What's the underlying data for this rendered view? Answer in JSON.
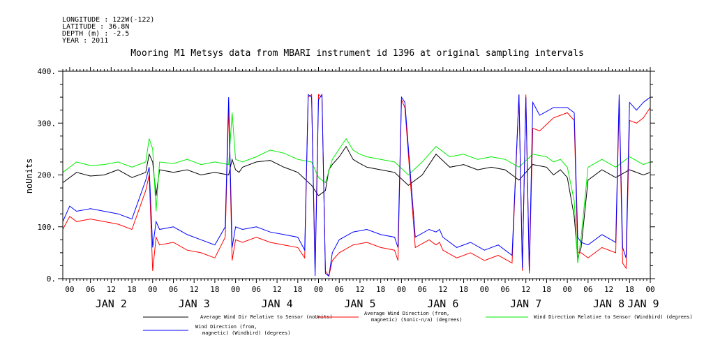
{
  "header": {
    "longitude": "LONGITUDE : 122W(-122)",
    "latitude": "LATITUDE : 36.8N",
    "depth": "DEPTH (m) : -2.5",
    "year": "YEAR : 2011"
  },
  "chart_data": {
    "type": "line",
    "title": "Mooring M1 Metsys data from MBARI instrument id 1396 at original sampling intervals",
    "ylabel": "noUnits",
    "xlabel": "",
    "ylim": [
      0,
      400
    ],
    "yticks": [
      0,
      100,
      200,
      300,
      400
    ],
    "ytick_labels": [
      "0.",
      "100.",
      "200.",
      "300.",
      "400."
    ],
    "xlim_hours": [
      22,
      192
    ],
    "hour_tick_labels": [
      "06",
      "12",
      "18",
      "00"
    ],
    "day_labels": [
      "JAN  2",
      "JAN  3",
      "JAN  4",
      "JAN  5",
      "JAN  6",
      "JAN  7",
      "JAN  8",
      "JAN  9"
    ],
    "x_unit": "hours since JAN 1 2011 00:00",
    "grid": false,
    "legend_position": "bottom",
    "series": [
      {
        "name": "Average Wind Dir Relative to Sensor (noUnits)",
        "color": "#000000",
        "x": [
          22,
          26,
          30,
          34,
          38,
          42,
          46,
          47,
          48,
          49,
          50,
          54,
          58,
          62,
          66,
          70,
          71,
          72,
          73,
          74,
          78,
          82,
          86,
          90,
          94,
          96,
          98,
          99,
          100,
          102,
          104,
          106,
          108,
          110,
          114,
          118,
          122,
          126,
          130,
          134,
          138,
          142,
          146,
          150,
          154,
          158,
          162,
          164,
          166,
          168,
          170,
          171,
          172,
          174,
          178,
          182,
          186,
          190,
          192
        ],
        "y": [
          185,
          205,
          198,
          200,
          210,
          195,
          205,
          240,
          225,
          160,
          210,
          205,
          210,
          200,
          205,
          200,
          230,
          210,
          205,
          215,
          225,
          228,
          215,
          205,
          180,
          160,
          170,
          210,
          220,
          235,
          255,
          230,
          222,
          215,
          210,
          205,
          180,
          200,
          240,
          215,
          220,
          210,
          215,
          210,
          190,
          220,
          215,
          200,
          210,
          195,
          120,
          40,
          60,
          190,
          210,
          195,
          210,
          200,
          205
        ]
      },
      {
        "name": "Average Wind Direction (from, magnetic) (Sonic-n/a) (degrees)",
        "color": "#ff0000",
        "x": [
          22,
          24,
          26,
          30,
          34,
          38,
          42,
          46,
          47,
          48,
          49,
          50,
          54,
          58,
          62,
          66,
          69,
          70,
          71,
          72,
          74,
          78,
          82,
          86,
          90,
          92,
          93,
          94,
          95,
          96,
          97,
          98,
          99,
          100,
          102,
          106,
          110,
          114,
          118,
          119,
          120,
          121,
          124,
          128,
          130,
          131,
          132,
          136,
          140,
          144,
          148,
          152,
          154,
          155,
          156,
          157,
          158,
          160,
          164,
          168,
          170,
          171,
          172,
          174,
          178,
          182,
          183,
          184,
          185,
          186,
          188,
          190,
          191,
          192
        ],
        "y": [
          95,
          120,
          110,
          115,
          110,
          105,
          95,
          170,
          200,
          15,
          80,
          65,
          70,
          55,
          50,
          40,
          80,
          330,
          35,
          75,
          70,
          80,
          70,
          65,
          60,
          40,
          350,
          355,
          20,
          355,
          350,
          15,
          5,
          35,
          50,
          65,
          70,
          60,
          55,
          35,
          345,
          330,
          60,
          75,
          65,
          70,
          55,
          40,
          50,
          35,
          45,
          30,
          355,
          15,
          355,
          10,
          290,
          285,
          310,
          320,
          305,
          50,
          50,
          40,
          60,
          50,
          345,
          30,
          20,
          305,
          300,
          310,
          320,
          330
        ]
      },
      {
        "name": "Wind Direction Relative to Sensor (Windbird) (degrees)",
        "color": "#00ee00",
        "x": [
          22,
          26,
          30,
          34,
          38,
          42,
          46,
          47,
          48,
          49,
          50,
          54,
          58,
          62,
          66,
          70,
          71,
          72,
          74,
          78,
          82,
          86,
          90,
          94,
          96,
          98,
          100,
          102,
          104,
          106,
          108,
          110,
          114,
          118,
          122,
          126,
          130,
          134,
          138,
          142,
          146,
          150,
          154,
          158,
          162,
          164,
          166,
          168,
          170,
          171,
          172,
          174,
          178,
          182,
          186,
          190,
          192
        ],
        "y": [
          205,
          225,
          218,
          220,
          225,
          215,
          225,
          270,
          250,
          130,
          225,
          222,
          230,
          220,
          225,
          220,
          320,
          230,
          225,
          235,
          248,
          242,
          230,
          225,
          195,
          185,
          230,
          250,
          270,
          248,
          240,
          235,
          230,
          225,
          200,
          225,
          255,
          235,
          240,
          230,
          235,
          230,
          215,
          240,
          235,
          225,
          230,
          215,
          150,
          30,
          80,
          215,
          230,
          215,
          235,
          220,
          225
        ]
      },
      {
        "name": "Wind Direction (from, magnetic) (Windbird) (degrees)",
        "color": "#0000ff",
        "x": [
          22,
          24,
          26,
          30,
          34,
          38,
          42,
          46,
          47,
          48,
          49,
          50,
          54,
          58,
          62,
          66,
          69,
          70,
          71,
          72,
          74,
          78,
          82,
          86,
          90,
          92,
          93,
          94,
          95,
          96,
          97,
          98,
          99,
          100,
          102,
          106,
          110,
          114,
          118,
          119,
          120,
          121,
          124,
          128,
          130,
          131,
          132,
          136,
          140,
          144,
          148,
          152,
          154,
          155,
          156,
          157,
          158,
          160,
          164,
          168,
          170,
          171,
          172,
          174,
          178,
          182,
          183,
          184,
          185,
          186,
          188,
          190,
          191,
          192
        ],
        "y": [
          110,
          140,
          130,
          135,
          130,
          125,
          115,
          190,
          215,
          60,
          110,
          95,
          100,
          85,
          75,
          65,
          100,
          350,
          60,
          100,
          95,
          100,
          90,
          85,
          80,
          55,
          355,
          350,
          5,
          345,
          355,
          10,
          5,
          50,
          75,
          90,
          95,
          85,
          80,
          60,
          350,
          340,
          80,
          95,
          90,
          95,
          80,
          60,
          70,
          55,
          65,
          45,
          355,
          20,
          350,
          15,
          340,
          315,
          330,
          330,
          320,
          80,
          70,
          65,
          85,
          70,
          355,
          60,
          40,
          340,
          325,
          340,
          345,
          350
        ]
      }
    ]
  }
}
